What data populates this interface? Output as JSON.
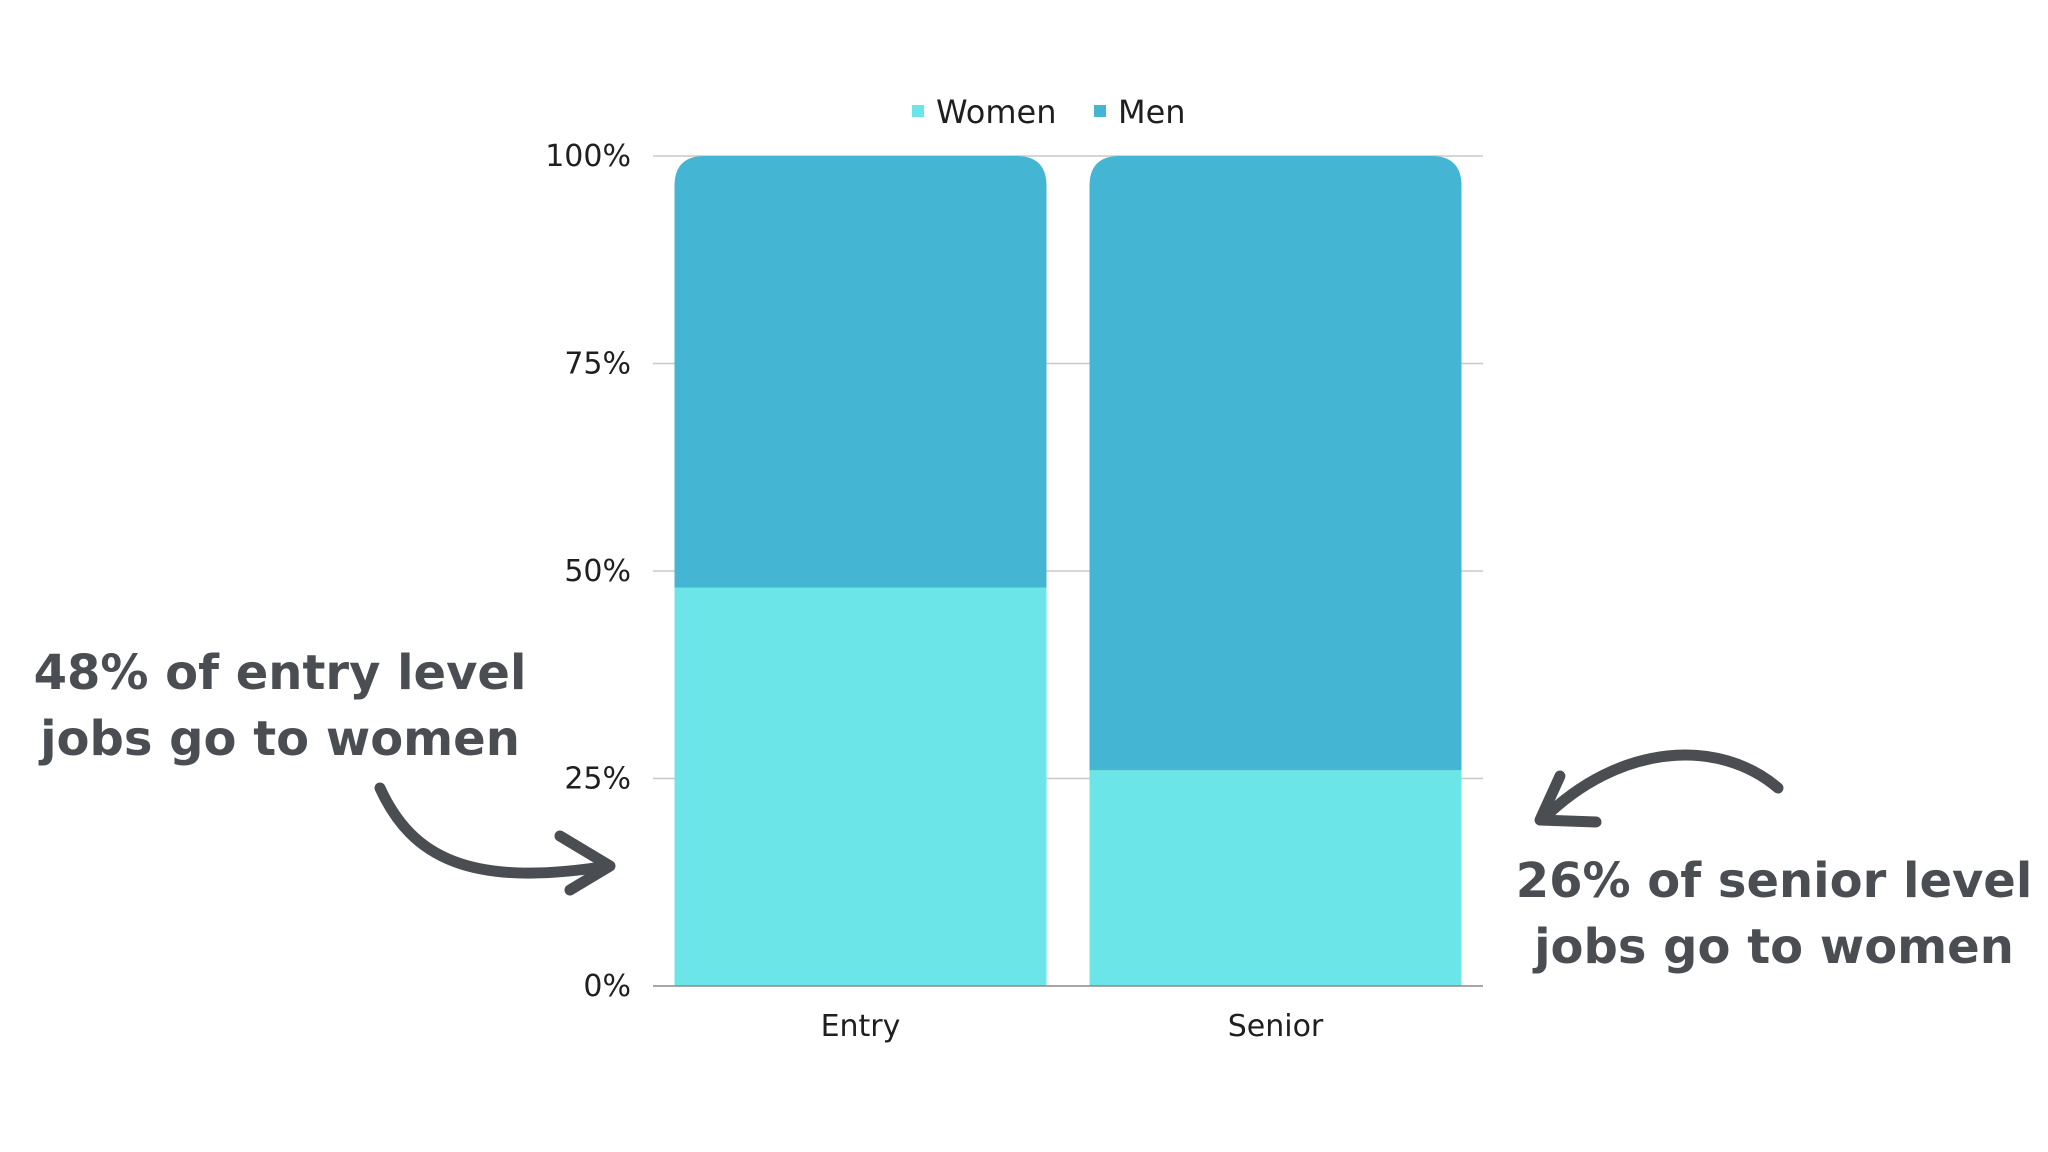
{
  "chart_data": {
    "type": "bar",
    "stacked": true,
    "categories": [
      "Entry",
      "Senior"
    ],
    "series": [
      {
        "name": "Women",
        "values": [
          48,
          26
        ],
        "color": "#6ce5e8"
      },
      {
        "name": "Men",
        "values": [
          52,
          74
        ],
        "color": "#44b5d2"
      }
    ],
    "ylim": [
      0,
      100
    ],
    "yticks": [
      0,
      25,
      50,
      75,
      100
    ],
    "ytick_suffix": "%",
    "grid": true,
    "legend_position": "top-center",
    "annotations": [
      {
        "lines": [
          "48% of entry level",
          "jobs go to women"
        ],
        "target": "Entry"
      },
      {
        "lines": [
          "26% of senior level",
          "jobs go to women"
        ],
        "target": "Senior"
      }
    ]
  },
  "colors": {
    "women": "#6ce5e8",
    "men": "#44b5d2",
    "annotation_text": "#4a4d52",
    "grid": "#c8c8c8"
  }
}
